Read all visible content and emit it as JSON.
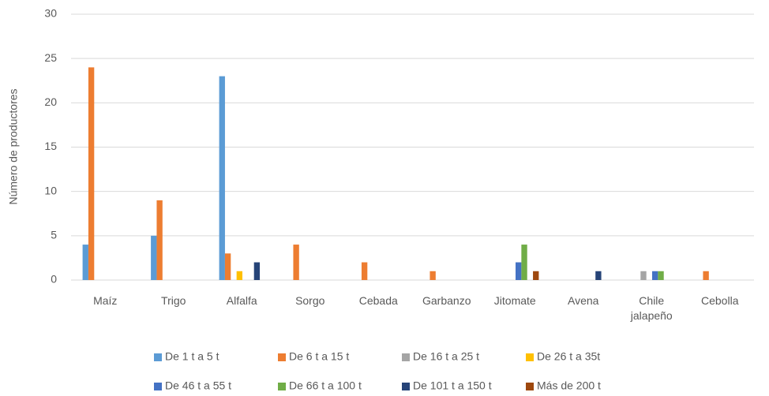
{
  "chart_data": {
    "type": "bar",
    "y_label": "Número de productores",
    "categories": [
      "Maíz",
      "Trigo",
      "Alfalfa",
      "Sorgo",
      "Cebada",
      "Garbanzo",
      "Jitomate",
      "Avena",
      "Chile jalapeño",
      "Cebolla"
    ],
    "series": [
      {
        "name": "De 1 t a 5 t",
        "color": "#5b9bd5",
        "values": [
          4,
          5,
          23,
          0,
          0,
          0,
          0,
          0,
          0,
          0
        ]
      },
      {
        "name": "De 6 t a 15 t",
        "color": "#ed7d31",
        "values": [
          24,
          9,
          3,
          4,
          2,
          1,
          0,
          0,
          0,
          1
        ]
      },
      {
        "name": "De 16 t a 25 t",
        "color": "#a5a5a5",
        "values": [
          0,
          0,
          0,
          0,
          0,
          0,
          0,
          0,
          1,
          0
        ]
      },
      {
        "name": "De 26 t a 35t",
        "color": "#ffc000",
        "values": [
          0,
          0,
          1,
          0,
          0,
          0,
          0,
          0,
          0,
          0
        ]
      },
      {
        "name": "De 46 t a 55 t",
        "color": "#4472c4",
        "values": [
          0,
          0,
          0,
          0,
          0,
          0,
          2,
          0,
          1,
          0
        ]
      },
      {
        "name": "De 66 t a 100 t",
        "color": "#70ad47",
        "values": [
          0,
          0,
          0,
          0,
          0,
          0,
          4,
          0,
          1,
          0
        ]
      },
      {
        "name": "De 101 t a 150 t",
        "color": "#264478",
        "values": [
          0,
          0,
          2,
          0,
          0,
          0,
          0,
          1,
          0,
          0
        ]
      },
      {
        "name": "Más de 200 t",
        "color": "#9e480e",
        "values": [
          0,
          0,
          0,
          0,
          0,
          0,
          1,
          0,
          0,
          0
        ]
      }
    ],
    "ylim": [
      0,
      30
    ],
    "yticks": [
      0,
      5,
      10,
      15,
      20,
      25,
      30
    ],
    "grid": true,
    "legend": "bottom"
  }
}
